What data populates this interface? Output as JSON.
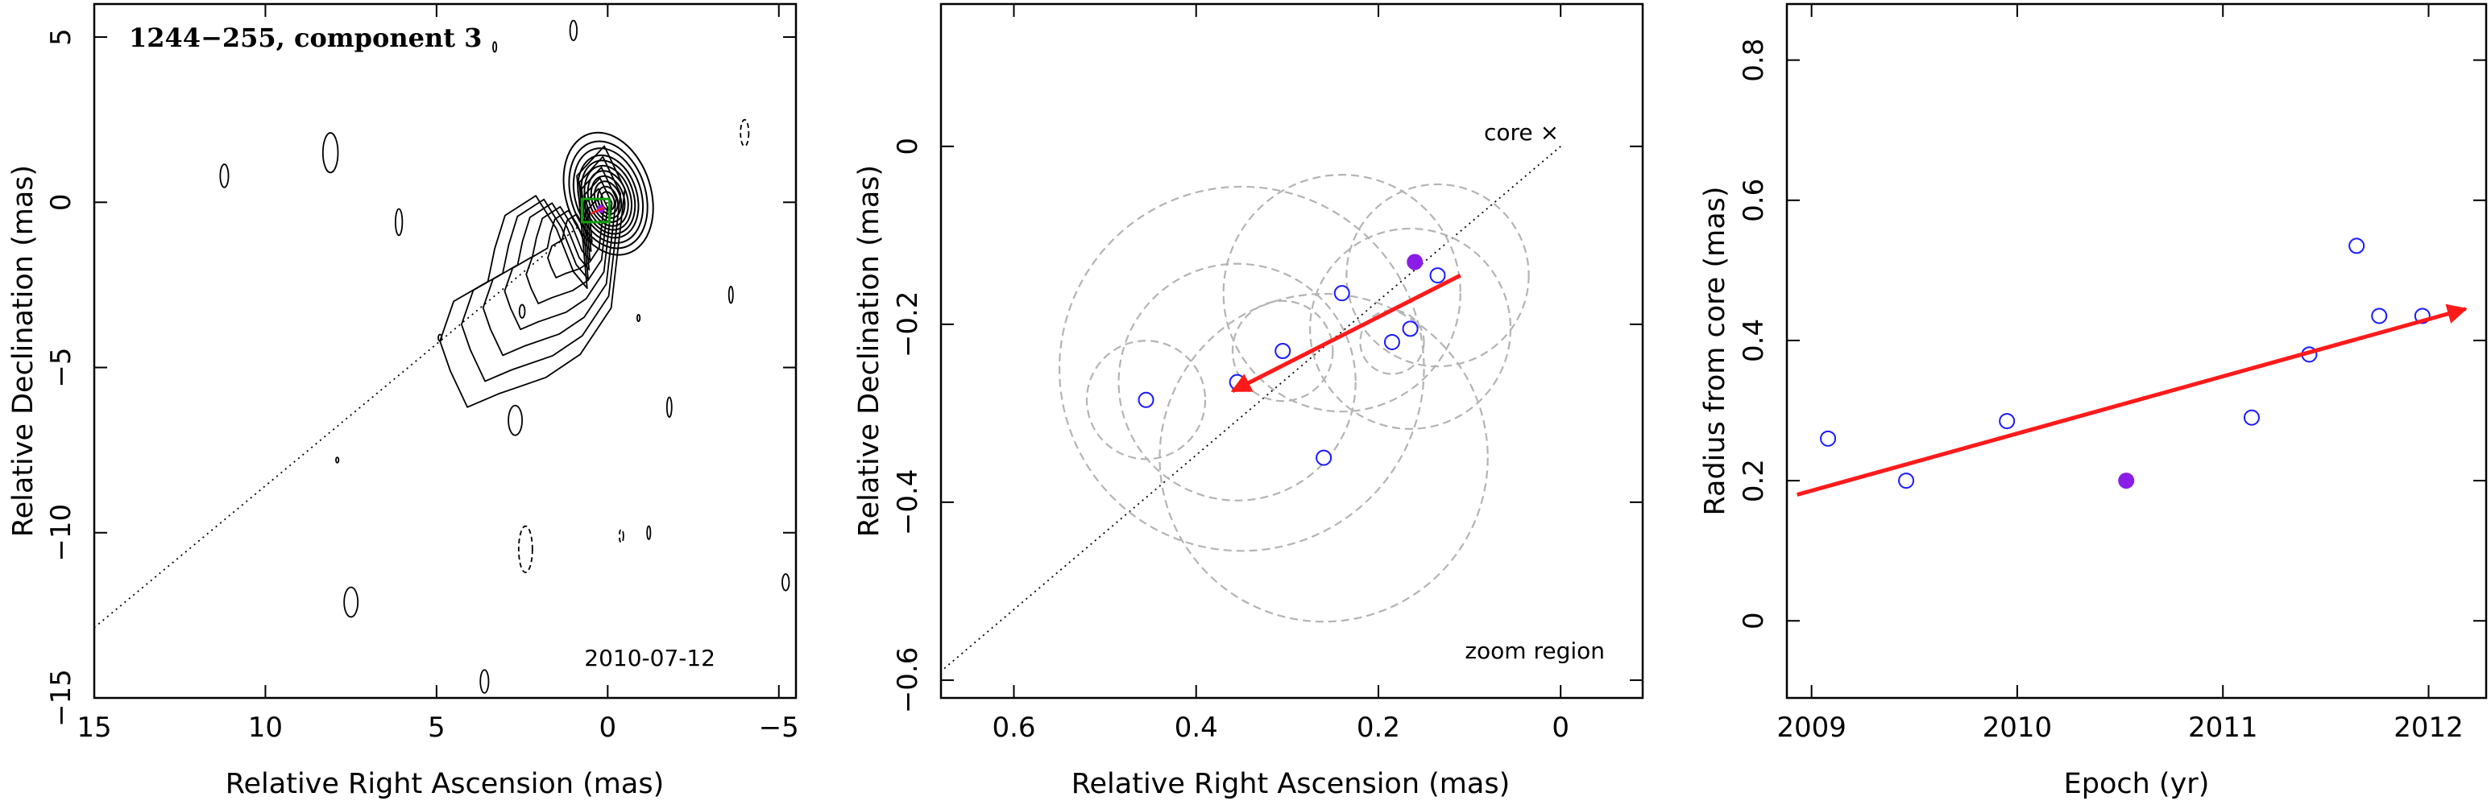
{
  "chart_data": [
    {
      "type": "contour",
      "title": "1244−255, component 3",
      "date_label": "2010-07-12",
      "xlabel": "Relative Right Ascension (mas)",
      "ylabel": "Relative Declination (mas)",
      "xlim": [
        15,
        -5.5
      ],
      "ylim": [
        -15,
        6
      ],
      "x_ticks": [
        15,
        10,
        5,
        0,
        -5
      ],
      "x_tick_labels": [
        "15",
        "10",
        "5",
        "0",
        "−5"
      ],
      "y_ticks": [
        -15,
        -10,
        -5,
        0,
        5
      ],
      "y_tick_labels": [
        "−15",
        "−10",
        "−5",
        "0",
        "5"
      ],
      "core_contours_radii_mas": [
        0.3,
        0.45,
        0.6,
        0.75,
        0.9,
        1.05,
        1.2,
        1.35,
        1.55,
        1.75,
        2.0
      ],
      "jet_contour_levels": 6,
      "component_position": [
        0.2,
        -0.2
      ],
      "zoom_box": {
        "x": [
          -0.05,
          0.75
        ],
        "y": [
          -0.6,
          0.1
        ]
      },
      "trajectory_line": {
        "from": [
          0,
          0
        ],
        "to": [
          15.5,
          -13.3
        ],
        "style": "dotted"
      }
    },
    {
      "type": "scatter",
      "xlabel": "Relative Right Ascension (mas)",
      "ylabel": "Relative Declination (mas)",
      "xlim": [
        0.68,
        -0.09
      ],
      "ylim": [
        -0.62,
        0.16
      ],
      "x_ticks": [
        0.6,
        0.4,
        0.2,
        0
      ],
      "x_tick_labels": [
        "0.6",
        "0.4",
        "0.2",
        "0"
      ],
      "y_ticks": [
        -0.6,
        -0.4,
        -0.2,
        0
      ],
      "y_tick_labels": [
        "−0.6",
        "−0.4",
        "−0.2",
        "0"
      ],
      "core_label": "core",
      "core_marker": "×",
      "zoom_label": "zoom region",
      "open_points": [
        {
          "x": 0.455,
          "y": -0.285
        },
        {
          "x": 0.355,
          "y": -0.265
        },
        {
          "x": 0.305,
          "y": -0.23
        },
        {
          "x": 0.26,
          "y": -0.35
        },
        {
          "x": 0.24,
          "y": -0.165
        },
        {
          "x": 0.185,
          "y": -0.22
        },
        {
          "x": 0.165,
          "y": -0.205
        },
        {
          "x": 0.135,
          "y": -0.145
        }
      ],
      "filled_point": {
        "x": 0.16,
        "y": -0.13
      },
      "circles": [
        {
          "x": 0.455,
          "y": -0.285,
          "r": 0.065
        },
        {
          "x": 0.355,
          "y": -0.265,
          "r": 0.13
        },
        {
          "x": 0.305,
          "y": -0.23,
          "r": 0.055
        },
        {
          "x": 0.26,
          "y": -0.35,
          "r": 0.18
        },
        {
          "x": 0.24,
          "y": -0.165,
          "r": 0.13
        },
        {
          "x": 0.185,
          "y": -0.22,
          "r": 0.035
        },
        {
          "x": 0.165,
          "y": -0.205,
          "r": 0.11
        },
        {
          "x": 0.135,
          "y": -0.145,
          "r": 0.1
        },
        {
          "x": 0.35,
          "y": -0.25,
          "r": 0.2
        }
      ],
      "velocity_arrow": {
        "from": [
          0.11,
          -0.145
        ],
        "to": [
          0.36,
          -0.275
        ]
      },
      "trajectory_line": {
        "from": [
          0,
          0
        ],
        "to": [
          0.68,
          -0.59
        ],
        "style": "dotted"
      },
      "colors": {
        "open": "#1a1aff",
        "filled": "#8a1ee6",
        "arrow": "#ff1a1a",
        "circle": "#b4b4b4"
      }
    },
    {
      "type": "scatter",
      "xlabel": "Epoch (yr)",
      "ylabel": "Radius from core (mas)",
      "xlim": [
        2008.88,
        2012.28
      ],
      "ylim": [
        -0.11,
        0.88
      ],
      "x_ticks": [
        2009,
        2010,
        2011,
        2012
      ],
      "x_tick_labels": [
        "2009",
        "2010",
        "2011",
        "2012"
      ],
      "y_ticks": [
        0,
        0.2,
        0.4,
        0.6,
        0.8
      ],
      "y_tick_labels": [
        "0",
        "0.2",
        "0.4",
        "0.6",
        "0.8"
      ],
      "open_points": [
        {
          "x": 2009.08,
          "y": 0.26
        },
        {
          "x": 2009.46,
          "y": 0.2
        },
        {
          "x": 2009.95,
          "y": 0.285
        },
        {
          "x": 2011.14,
          "y": 0.29
        },
        {
          "x": 2011.42,
          "y": 0.38
        },
        {
          "x": 2011.65,
          "y": 0.535
        },
        {
          "x": 2011.76,
          "y": 0.435
        },
        {
          "x": 2011.97,
          "y": 0.435
        }
      ],
      "filled_point": {
        "x": 2010.53,
        "y": 0.2
      },
      "fit_arrow": {
        "from": [
          2008.93,
          0.18
        ],
        "to": [
          2012.18,
          0.445
        ]
      },
      "colors": {
        "open": "#1a1aff",
        "filled": "#8a1ee6",
        "arrow": "#ff1a1a"
      }
    }
  ]
}
